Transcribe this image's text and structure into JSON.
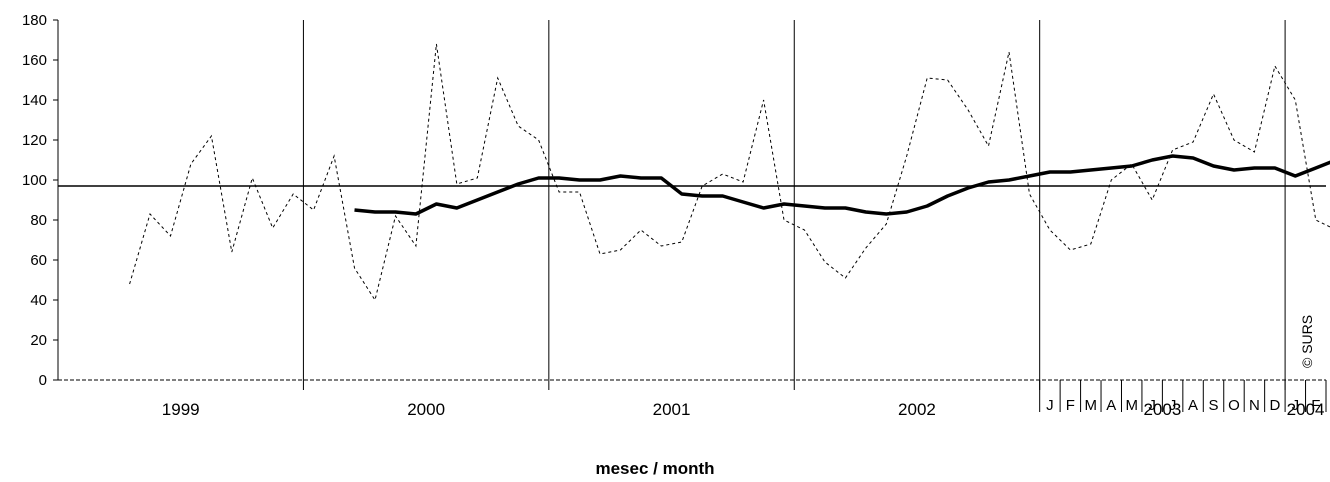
{
  "chart_data": {
    "type": "line",
    "title": "",
    "xlabel": "mesec / month",
    "ylabel": "",
    "ylim": [
      0,
      180
    ],
    "yticks": [
      0,
      20,
      40,
      60,
      80,
      100,
      120,
      140,
      160,
      180
    ],
    "year_labels": [
      "1999",
      "2000",
      "2001",
      "2002",
      "2003",
      "2004"
    ],
    "month_labels_2003": [
      "J",
      "F",
      "M",
      "A",
      "M",
      "J",
      "J",
      "A",
      "S",
      "O",
      "N",
      "D"
    ],
    "month_labels_2004": [
      "J",
      "F"
    ],
    "reference_line": 97,
    "watermark": "© SURS",
    "grid": false,
    "series": [
      {
        "style": "dotted",
        "values": [
          48,
          83,
          72,
          108,
          122,
          64,
          101,
          76,
          93,
          85,
          112,
          56,
          40,
          82,
          67,
          168,
          98,
          101,
          151,
          127,
          120,
          94,
          94,
          63,
          65,
          75,
          67,
          69,
          97,
          103,
          99,
          140,
          80,
          75,
          59,
          51,
          66,
          78,
          112,
          151,
          150,
          135,
          117,
          164,
          93,
          75,
          65,
          68,
          100,
          108,
          90,
          115,
          119,
          143,
          120,
          114,
          157,
          140,
          80,
          75
        ]
      },
      {
        "style": "solid",
        "start_index": 11,
        "values": [
          85,
          84,
          84,
          83,
          88,
          86,
          90,
          94,
          98,
          101,
          101,
          100,
          100,
          102,
          101,
          101,
          93,
          92,
          92,
          89,
          86,
          88,
          87,
          86,
          86,
          84,
          83,
          84,
          87,
          92,
          96,
          99,
          100,
          102,
          104,
          104,
          105,
          106,
          107,
          110,
          112,
          111,
          107,
          105,
          106,
          106,
          102,
          106,
          110,
          112,
          113
        ]
      }
    ]
  }
}
